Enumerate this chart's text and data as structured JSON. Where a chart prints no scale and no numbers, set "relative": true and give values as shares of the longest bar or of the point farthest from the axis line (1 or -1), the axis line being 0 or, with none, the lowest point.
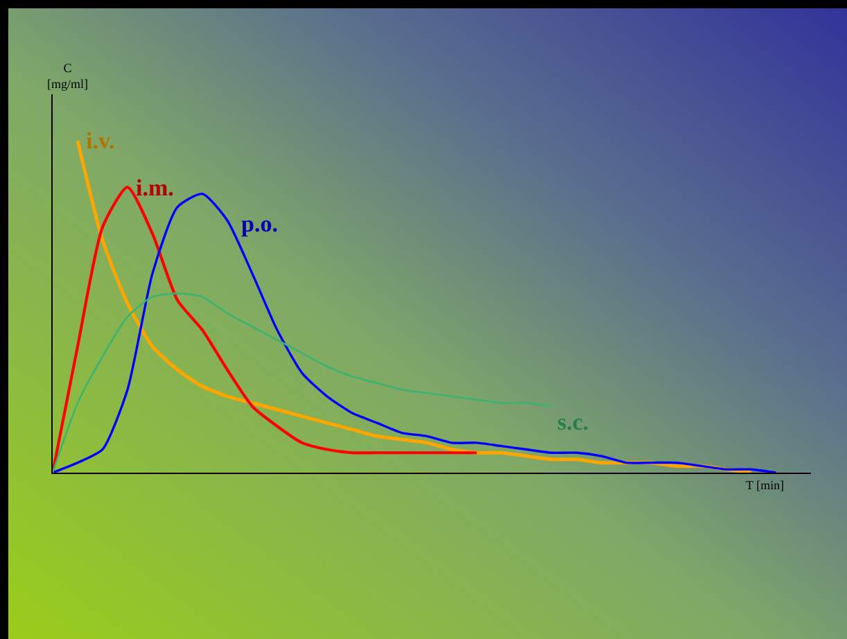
{
  "chart_data": {
    "type": "line",
    "relative": true,
    "xlabel": "T [min]",
    "ylabel": "C [mg/ml]",
    "legend": false,
    "marker": "none",
    "line_style": "solid",
    "categories": [
      null,
      null,
      null,
      null,
      null,
      null,
      null,
      null,
      null,
      null,
      null,
      null,
      null,
      null,
      null,
      null,
      null,
      null,
      null,
      null,
      null,
      null,
      null,
      null,
      null,
      null,
      null,
      null,
      null,
      null
    ],
    "series": [
      {
        "name": "i.v.",
        "color": "#ffa500",
        "values": [
          null,
          1.0,
          0.7,
          0.51,
          0.38,
          0.31,
          0.26,
          0.23,
          0.21,
          0.19,
          0.17,
          0.15,
          0.13,
          0.11,
          0.1,
          0.09,
          0.07,
          0.06,
          0.06,
          0.05,
          0.04,
          0.04,
          0.03,
          0.03,
          0.03,
          0.02,
          0.02,
          0.01,
          0.0,
          null
        ]
      },
      {
        "name": "i.m.",
        "color": "#ff0000",
        "values": [
          0,
          0.38,
          0.74,
          0.86,
          0.72,
          0.52,
          0.43,
          0.31,
          0.2,
          0.14,
          0.09,
          0.07,
          0.06,
          0.06,
          0.06,
          0.06,
          0.06,
          0.06,
          null,
          null,
          null,
          null,
          null,
          null,
          null,
          null,
          null,
          null,
          null,
          null
        ]
      },
      {
        "name": "p.o.",
        "color": "#0000ff",
        "values": [
          0,
          0.03,
          0.07,
          0.25,
          0.6,
          0.8,
          0.84,
          0.76,
          0.6,
          0.43,
          0.3,
          0.23,
          0.18,
          0.15,
          0.12,
          0.11,
          0.09,
          0.09,
          0.08,
          0.07,
          0.06,
          0.06,
          0.05,
          0.03,
          0.03,
          0.03,
          0.02,
          0.01,
          0.01,
          0.0
        ]
      },
      {
        "name": "s.c.",
        "color": "#3cb371",
        "values": [
          0,
          0.21,
          0.35,
          0.47,
          0.53,
          0.54,
          0.53,
          0.48,
          0.44,
          0.4,
          0.36,
          0.32,
          0.29,
          0.27,
          0.25,
          0.24,
          0.23,
          0.22,
          0.21,
          0.21,
          0.2,
          null,
          null,
          null,
          null,
          null,
          null,
          null,
          null,
          null
        ]
      }
    ]
  }
}
